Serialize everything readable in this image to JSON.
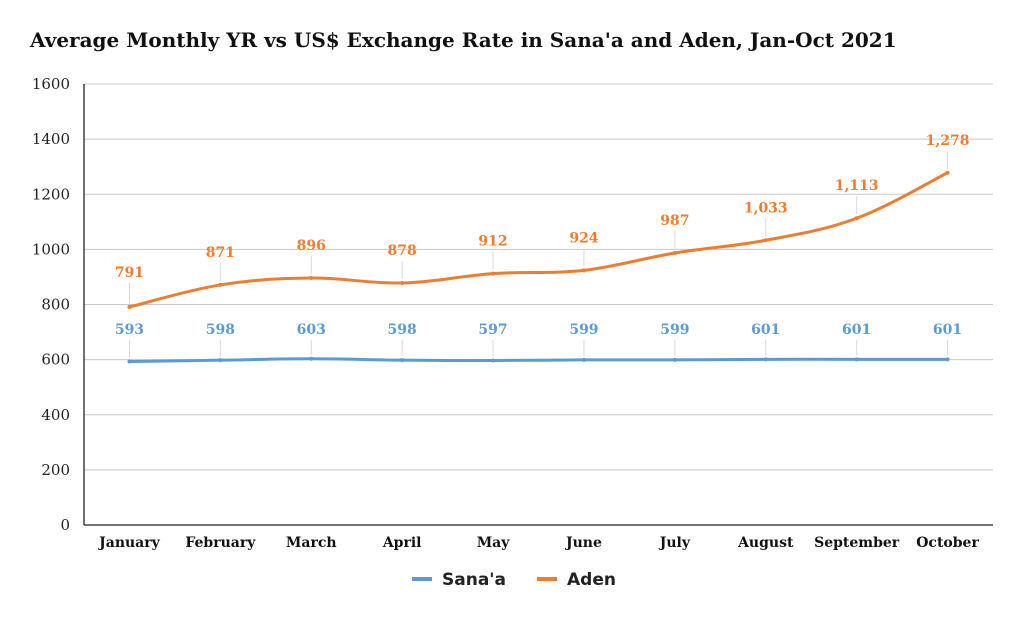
{
  "chart_data": {
    "type": "line",
    "title": "Average Monthly YR vs US$ Exchange Rate in Sana'a and Aden, Jan-Oct 2021",
    "xlabel": "",
    "ylabel": "",
    "ylim": [
      0,
      1600
    ],
    "yticks": [
      0,
      200,
      400,
      600,
      800,
      1000,
      1200,
      1400,
      1600
    ],
    "categories": [
      "January",
      "February",
      "March",
      "April",
      "May",
      "June",
      "July",
      "August",
      "September",
      "October"
    ],
    "series": [
      {
        "name": "Sana'a",
        "color": "#5b9bd5",
        "values": [
          593,
          598,
          603,
          598,
          597,
          599,
          599,
          601,
          601,
          601
        ],
        "labels": [
          "593",
          "598",
          "603",
          "598",
          "597",
          "599",
          "599",
          "601",
          "601",
          "601"
        ]
      },
      {
        "name": "Aden",
        "color": "#ed7d31",
        "values": [
          791,
          871,
          896,
          878,
          912,
          924,
          987,
          1033,
          1113,
          1278
        ],
        "labels": [
          "791",
          "871",
          "896",
          "878",
          "912",
          "924",
          "987",
          "1,033",
          "1,113",
          "1,278"
        ]
      }
    ],
    "grid": true,
    "legend": "bottom"
  }
}
